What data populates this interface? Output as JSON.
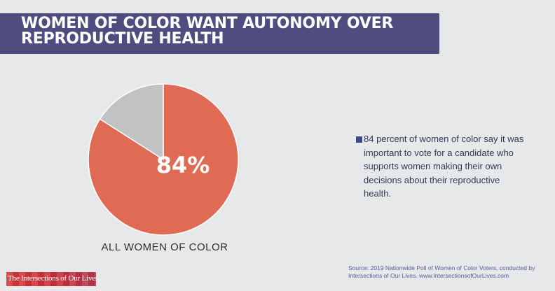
{
  "header": {
    "title_line1": "WOMEN OF COLOR WANT AUTONOMY OVER",
    "title_line2": "REPRODUCTIVE HEALTH",
    "banner_color": "#4f4d7f"
  },
  "chart_data": {
    "type": "pie",
    "title": "",
    "categories": [
      "",
      ""
    ],
    "values": [
      84,
      16
    ],
    "colors": [
      "#e06b55",
      "#c1c2c4"
    ],
    "center_label": "84%",
    "caption": "ALL WOMEN OF COLOR"
  },
  "note": {
    "text": "84 percent of women of color say it was important to vote for a candidate who supports women making their own decisions about their reproductive health.",
    "bullet_color": "#3d4a8a"
  },
  "source": {
    "text": "Source: 2019 Nationwide Poll of Women of Color Voters, conducted by Intersections of Our Lives. www.IntersectionsofOurLives.com"
  },
  "logo": {
    "text": "The Intersections of Our Lives"
  }
}
